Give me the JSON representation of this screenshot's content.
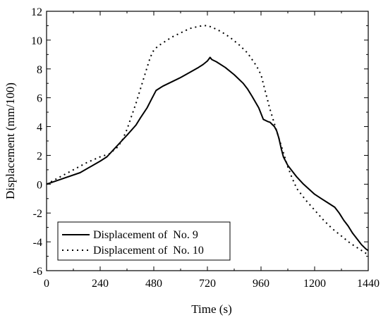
{
  "chart_data": {
    "type": "line",
    "title": "",
    "xlabel": "Time (s)",
    "ylabel": "Displacement (mm/100)",
    "xlim": [
      0,
      1440
    ],
    "ylim": [
      -6,
      12
    ],
    "xticks": [
      0,
      240,
      480,
      720,
      960,
      1200,
      1440
    ],
    "yticks": [
      -6,
      -4,
      -2,
      0,
      2,
      4,
      6,
      8,
      10,
      12
    ],
    "grid": false,
    "legend_position": "bottom-left",
    "series": [
      {
        "name": "Displacement of  No. 9",
        "style": "solid",
        "color": "#000000",
        "x": [
          0,
          150,
          240,
          270,
          300,
          330,
          360,
          400,
          420,
          450,
          470,
          490,
          500,
          520,
          560,
          600,
          640,
          680,
          700,
          720,
          732,
          740,
          760,
          800,
          840,
          880,
          900,
          920,
          950,
          970,
          990,
          1000,
          1020,
          1030,
          1040,
          1050,
          1060,
          1080,
          1100,
          1120,
          1150,
          1200,
          1230,
          1260,
          1290,
          1310,
          1330,
          1350,
          1370,
          1390,
          1410,
          1430,
          1440
        ],
        "y": [
          0,
          0.8,
          1.6,
          1.9,
          2.4,
          2.9,
          3.4,
          4.1,
          4.6,
          5.3,
          5.9,
          6.5,
          6.6,
          6.8,
          7.1,
          7.4,
          7.75,
          8.1,
          8.3,
          8.55,
          8.8,
          8.65,
          8.5,
          8.1,
          7.6,
          7.0,
          6.6,
          6.1,
          5.3,
          4.5,
          4.35,
          4.3,
          4.0,
          3.7,
          3.2,
          2.5,
          1.9,
          1.3,
          0.9,
          0.5,
          0.0,
          -0.7,
          -1.0,
          -1.3,
          -1.6,
          -2.0,
          -2.5,
          -2.9,
          -3.4,
          -3.8,
          -4.2,
          -4.5,
          -4.6
        ]
      },
      {
        "name": "Displacement of  No. 10",
        "style": "dotted",
        "color": "#000000",
        "x": [
          0,
          60,
          120,
          180,
          240,
          280,
          320,
          340,
          360,
          380,
          400,
          420,
          440,
          460,
          470,
          480,
          500,
          520,
          560,
          600,
          640,
          680,
          700,
          720,
          740,
          780,
          820,
          860,
          900,
          940,
          960,
          980,
          1000,
          1020,
          1040,
          1060,
          1080,
          1100,
          1120,
          1160,
          1200,
          1240,
          1280,
          1320,
          1360,
          1400,
          1440
        ],
        "y": [
          0,
          0.5,
          1.0,
          1.5,
          1.9,
          2.1,
          2.6,
          3.1,
          3.8,
          4.7,
          5.6,
          6.6,
          7.6,
          8.6,
          9.0,
          9.3,
          9.6,
          9.8,
          10.2,
          10.5,
          10.8,
          10.95,
          11.0,
          11.0,
          10.9,
          10.6,
          10.2,
          9.7,
          9.1,
          8.2,
          7.6,
          6.4,
          5.2,
          4.2,
          3.2,
          2.2,
          1.2,
          0.4,
          -0.3,
          -1.1,
          -1.8,
          -2.5,
          -3.1,
          -3.6,
          -4.1,
          -4.5,
          -4.9
        ]
      }
    ]
  }
}
